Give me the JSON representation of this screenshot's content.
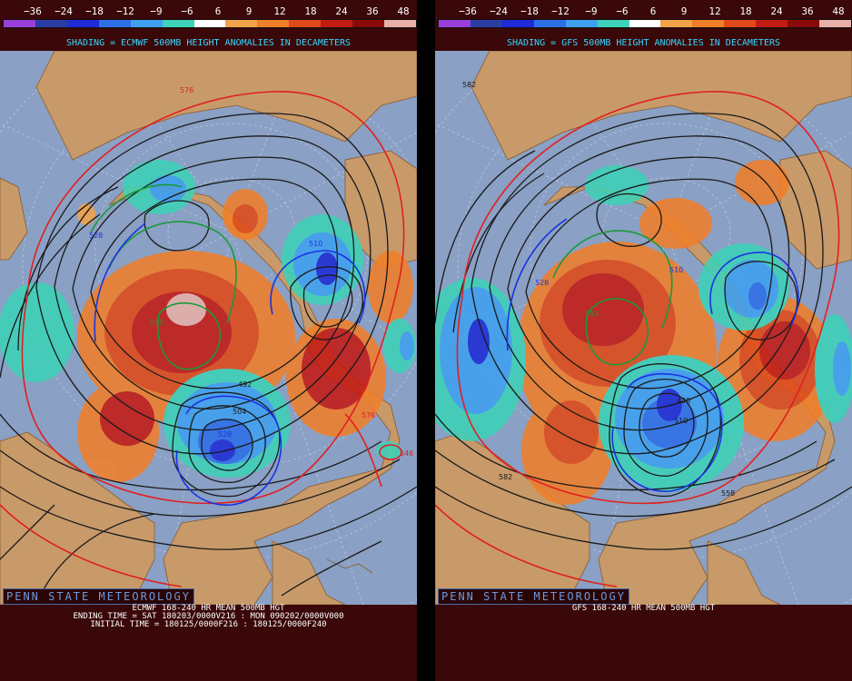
{
  "colorbar": {
    "labels": [
      "−36",
      "−24",
      "−18",
      "−12",
      "−9",
      "−6",
      "6",
      "9",
      "12",
      "18",
      "24",
      "36",
      "48"
    ],
    "colors": [
      "#9a3fd9",
      "#2b3da3",
      "#1e2bd6",
      "#2e6fe8",
      "#3fa0f0",
      "#3ed2b8",
      "#ffffff",
      "#f4a24a",
      "#f07f2a",
      "#e04a18",
      "#c41a14",
      "#8a0a0a",
      "#e8b0a8"
    ]
  },
  "left": {
    "shading_title": "SHADING = ECMWF 500MB HEIGHT ANOMALIES IN DECAMETERS",
    "brand": "PENN STATE METEOROLOGY",
    "caption_lines": [
      "ECMWF 168-240 HR MEAN 500MB HGT",
      "ENDING TIME = SAT 180203/0000V216 : MON 090202/0000V000",
      "INITIAL TIME = 180125/0000F216 : 180125/0000F240"
    ],
    "contour_labels": [
      {
        "text": "576"
      },
      {
        "text": "528"
      },
      {
        "text": "510"
      },
      {
        "text": "552"
      },
      {
        "text": "492"
      },
      {
        "text": "504"
      },
      {
        "text": "528"
      },
      {
        "text": "576"
      },
      {
        "text": "546"
      }
    ]
  },
  "right": {
    "shading_title": "SHADING = GFS 500MB HEIGHT ANOMALIES IN DECAMETERS",
    "brand": "PENN STATE METEOROLOGY",
    "caption_lines": [
      "GFS 168-240 HR MEAN 500MB HGT"
    ],
    "contour_labels": [
      {
        "text": "582"
      },
      {
        "text": "510"
      },
      {
        "text": "528"
      },
      {
        "text": "552"
      },
      {
        "text": "498"
      },
      {
        "text": "510"
      },
      {
        "text": "582"
      },
      {
        "text": "558"
      }
    ]
  }
}
